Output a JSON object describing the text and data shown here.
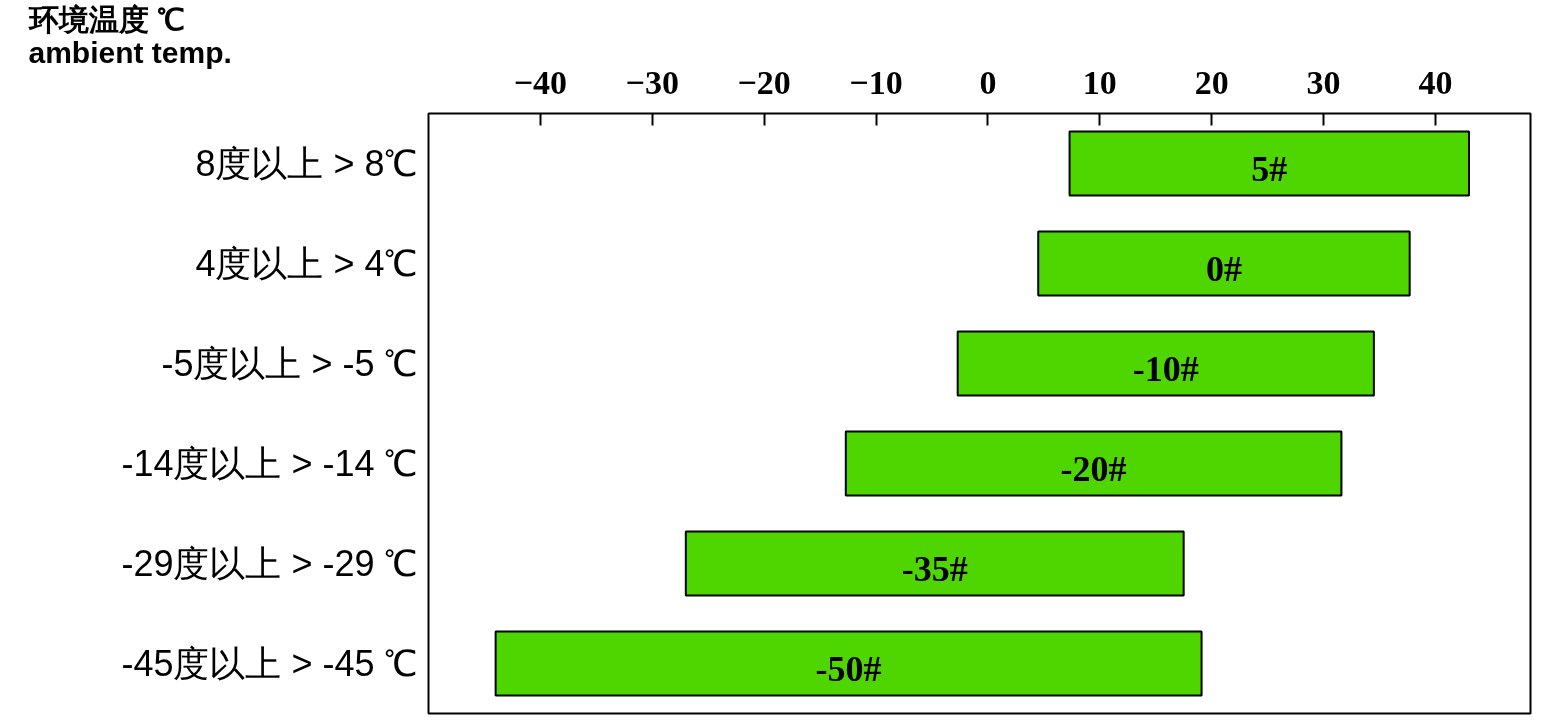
{
  "chart_data": {
    "type": "bar",
    "orientation": "horizontal",
    "ylabel": "环境温度 ℃\nambient temp.",
    "categories": [
      "8度以上 > 8℃",
      "4度以上 > 4℃",
      "-5度以上 > -5 ℃",
      "-14度以上 > -14 ℃",
      "-29度以上 > -29 ℃",
      "-45度以上 > -45 ℃"
    ],
    "base": [
      7.3,
      4.5,
      -2.7,
      -12.7,
      -27,
      -44
    ],
    "values": [
      35.7,
      33.2,
      37.2,
      44.3,
      44.5,
      63.1
    ],
    "color": "#4fd600",
    "annotations": [
      "5#",
      "0#",
      "-10#",
      "-20#",
      "-35#",
      "-50#"
    ],
    "xlim": [
      -50,
      48.5
    ],
    "xticks": [
      {
        "value": -40,
        "label": "−40"
      },
      {
        "value": -30,
        "label": "−30"
      },
      {
        "value": -20,
        "label": "−20"
      },
      {
        "value": -10,
        "label": "−10"
      },
      0,
      10,
      20,
      30,
      40
    ],
    "grid": false
  }
}
